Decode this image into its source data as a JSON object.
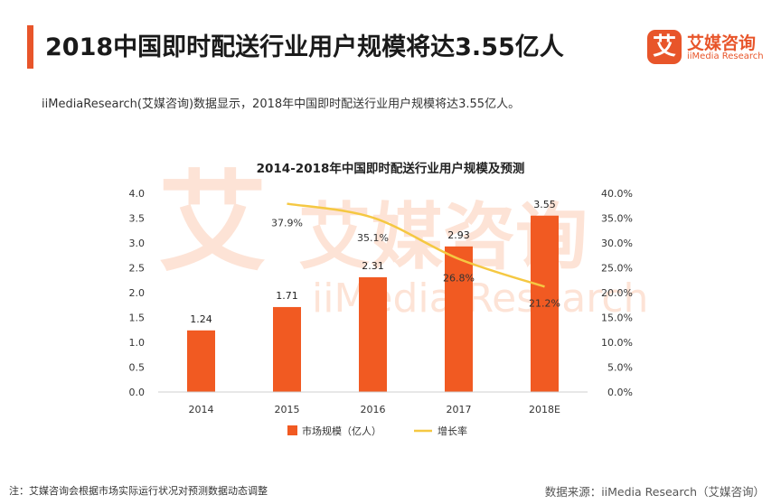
{
  "page": {
    "title": "2018中国即时配送行业用户规模将达3.55亿人",
    "description": "iiMediaResearch(艾媒咨询)数据显示，2018年中国即时配送行业用户规模将达3.55亿人。",
    "footnote": "注：艾媒咨询会根据市场实际运行状况对预测数据动态调整",
    "source": "数据来源：iiMedia Research（艾媒咨询）"
  },
  "logo": {
    "mark": "艾",
    "name_cn": "艾媒咨询",
    "name_en": "iiMedia Research"
  },
  "colors": {
    "accent": "#e8552a",
    "bar": "#f15a22",
    "line": "#f5c842",
    "watermark": "#fde3d6"
  },
  "chart_data": {
    "type": "bar",
    "title": "2014-2018年中国即时配送行业用户规模及预测",
    "categories": [
      "2014",
      "2015",
      "2016",
      "2017",
      "2018E"
    ],
    "series": [
      {
        "name": "市场规模（亿人）",
        "type": "bar",
        "axis": "left",
        "values": [
          1.24,
          1.71,
          2.31,
          2.93,
          3.55
        ],
        "labels": [
          "1.24",
          "1.71",
          "2.31",
          "2.93",
          "3.55"
        ]
      },
      {
        "name": "增长率",
        "type": "line",
        "axis": "right",
        "x": [
          "2015",
          "2016",
          "2017",
          "2018E"
        ],
        "values": [
          37.9,
          35.1,
          26.8,
          21.2
        ],
        "labels": [
          "37.9%",
          "35.1%",
          "26.8%",
          "21.2%"
        ]
      }
    ],
    "ylim_left": [
      0,
      4.0
    ],
    "yticks_left": [
      "0.0",
      "0.5",
      "1.0",
      "1.5",
      "2.0",
      "2.5",
      "3.0",
      "3.5",
      "4.0"
    ],
    "ylim_right": [
      0,
      40
    ],
    "yticks_right": [
      "0.0%",
      "5.0%",
      "10.0%",
      "15.0%",
      "20.0%",
      "25.0%",
      "30.0%",
      "35.0%",
      "40.0%"
    ],
    "grid": false,
    "legend_position": "bottom",
    "watermark": {
      "mark": "艾",
      "cn": "艾媒咨询",
      "en": "iiMedia Research"
    }
  }
}
